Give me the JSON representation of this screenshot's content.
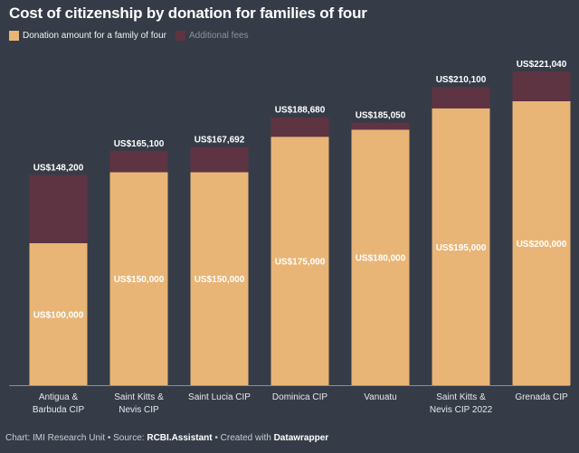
{
  "title": "Cost of citizenship by donation for families of four",
  "legend": {
    "donation": "Donation amount for a family of four",
    "fees": "Additional fees"
  },
  "colors": {
    "donation": "#e8b577",
    "fees": "#5e3342",
    "background": "#353c47"
  },
  "footer": {
    "chart_prefix": "Chart: IMI Research Unit • Source: ",
    "source": "RCBI.Assistant",
    "created_prefix": " • Created with ",
    "tool": "Datawrapper"
  },
  "chart_data": {
    "type": "bar",
    "stacked": true,
    "title": "Cost of citizenship by donation for families of four",
    "categories": [
      [
        "Antigua &",
        "Barbuda CIP"
      ],
      [
        "Saint Kitts &",
        "Nevis CIP"
      ],
      [
        "Saint Lucia CIP"
      ],
      [
        "Dominica CIP"
      ],
      [
        "Vanuatu"
      ],
      [
        "Saint Kitts &",
        "Nevis CIP 2022"
      ],
      [
        "Grenada CIP"
      ]
    ],
    "series": [
      {
        "name": "Donation amount for a family of four",
        "values": [
          100000,
          150000,
          150000,
          175000,
          180000,
          195000,
          200000
        ],
        "labels": [
          "US$100,000",
          "US$150,000",
          "US$150,000",
          "US$175,000",
          "US$180,000",
          "US$195,000",
          "US$200,000"
        ]
      },
      {
        "name": "Additional fees",
        "values": [
          48200,
          15100,
          17692,
          13680,
          5050,
          15100,
          21040
        ]
      }
    ],
    "totals": [
      148200,
      165100,
      167692,
      188680,
      185050,
      210100,
      221040
    ],
    "total_labels": [
      "US$148,200",
      "US$165,100",
      "US$167,692",
      "US$188,680",
      "US$185,050",
      "US$210,100",
      "US$221,040"
    ],
    "ylim": [
      0,
      235000
    ],
    "grid": false,
    "legend_position": "top-left"
  }
}
